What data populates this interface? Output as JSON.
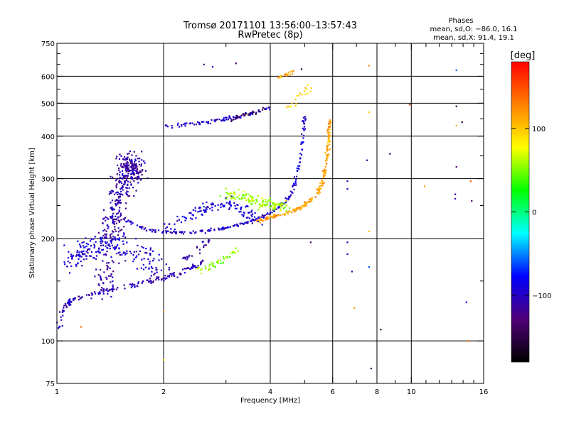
{
  "chart_data": {
    "type": "scatter",
    "title": "Tromsø 20171101 13:56:00–13:57:43",
    "subtitle": "RwPretec (8p)",
    "xlabel": "Frequency [MHz]",
    "ylabel": "Stationary phase Virtual Height [km]",
    "xscale": "log",
    "yscale": "log",
    "xlim": [
      1,
      16
    ],
    "ylim": [
      75,
      750
    ],
    "xticks": [
      1,
      2,
      4,
      6,
      8,
      10,
      16
    ],
    "xtick_labels": [
      "1",
      "2",
      "4",
      "6",
      "8",
      "10",
      "16"
    ],
    "x_minor_ticks": [
      3,
      5,
      7,
      9,
      11,
      12,
      13,
      14,
      15
    ],
    "yticks": [
      75,
      100,
      200,
      300,
      400,
      500,
      600,
      750
    ],
    "ytick_labels": [
      "75",
      "100",
      "200",
      "300",
      "400",
      "500",
      "600",
      "750"
    ],
    "y_minor_ticks": [
      150,
      250,
      350,
      450,
      550,
      650,
      700
    ],
    "grid_x": [
      2,
      4,
      6,
      8,
      10
    ],
    "grid_y": [
      100,
      200,
      300,
      400,
      500,
      600
    ],
    "stats": {
      "heading": "Phases",
      "line1": "mean, sd,O: −86.0, 16.1",
      "line2": "mean, sd,X:  91.4, 19.1"
    },
    "colorbar": {
      "label": "[deg]",
      "min": -180,
      "max": 180,
      "ticks": [
        100,
        0,
        -100
      ],
      "tick_labels": [
        "100",
        "0",
        "−100"
      ],
      "stops": [
        "#000000",
        "#500078",
        "#0000ff",
        "#00ffff",
        "#00ff00",
        "#ffff00",
        "#ff8000",
        "#ff0000"
      ]
    },
    "series": [
      {
        "curve": [
          [
            1.0,
            105
          ],
          [
            1.05,
            125
          ],
          [
            1.1,
            132
          ],
          [
            1.25,
            137
          ],
          [
            1.45,
            142
          ],
          [
            1.75,
            148
          ],
          [
            2.0,
            153
          ],
          [
            2.3,
            160
          ],
          [
            2.6,
            172
          ]
        ],
        "spread": 0.022,
        "count": 180,
        "phase": -105
      },
      {
        "curve": [
          [
            1.35,
            140
          ],
          [
            1.42,
            200
          ],
          [
            1.48,
            255
          ],
          [
            1.55,
            300
          ],
          [
            1.6,
            340
          ],
          [
            1.68,
            310
          ]
        ],
        "spread": 0.09,
        "count": 420,
        "phase": -110
      },
      {
        "curve": [
          [
            1.08,
            170
          ],
          [
            1.2,
            185
          ],
          [
            1.4,
            195
          ],
          [
            1.7,
            180
          ],
          [
            2.0,
            160
          ]
        ],
        "spread": 0.1,
        "count": 200,
        "phase": -95
      },
      {
        "curve": [
          [
            1.55,
            228
          ],
          [
            1.8,
            212
          ],
          [
            2.2,
            208
          ],
          [
            2.6,
            210
          ],
          [
            3.0,
            215
          ],
          [
            3.4,
            222
          ],
          [
            3.8,
            232
          ],
          [
            4.2,
            245
          ],
          [
            4.5,
            262
          ],
          [
            4.7,
            290
          ],
          [
            4.85,
            340
          ],
          [
            4.95,
            400
          ],
          [
            5.0,
            460
          ]
        ],
        "spread": 0.014,
        "count": 230,
        "phase": -98
      },
      {
        "curve": [
          [
            2.05,
            215
          ],
          [
            2.4,
            235
          ],
          [
            2.75,
            250
          ],
          [
            3.1,
            255
          ],
          [
            3.4,
            240
          ],
          [
            3.7,
            225
          ]
        ],
        "spread": 0.05,
        "count": 120,
        "phase": -90
      },
      {
        "curve": [
          [
            3.7,
            226
          ],
          [
            4.1,
            232
          ],
          [
            4.6,
            240
          ],
          [
            5.0,
            250
          ],
          [
            5.35,
            265
          ],
          [
            5.6,
            290
          ],
          [
            5.75,
            330
          ],
          [
            5.85,
            390
          ],
          [
            5.9,
            450
          ]
        ],
        "spread": 0.015,
        "count": 200,
        "phase": 115
      },
      {
        "curve": [
          [
            2.9,
            270
          ],
          [
            3.3,
            268
          ],
          [
            3.7,
            255
          ],
          [
            4.1,
            252
          ],
          [
            4.4,
            248
          ]
        ],
        "spread": 0.045,
        "count": 140,
        "phase": 60
      },
      {
        "curve": [
          [
            2.5,
            160
          ],
          [
            2.8,
            168
          ],
          [
            3.0,
            175
          ],
          [
            3.25,
            188
          ]
        ],
        "spread": 0.035,
        "count": 45,
        "phase": 55
      },
      {
        "curve": [
          [
            2.0,
            425
          ],
          [
            2.4,
            435
          ],
          [
            2.8,
            445
          ],
          [
            3.2,
            455
          ],
          [
            3.6,
            468
          ],
          [
            4.0,
            485
          ]
        ],
        "spread": 0.018,
        "count": 90,
        "phase": -95
      },
      {
        "curve": [
          [
            3.1,
            448
          ],
          [
            3.5,
            465
          ],
          [
            3.9,
            482
          ]
        ],
        "spread": 0.015,
        "count": 30,
        "phase": -140
      },
      {
        "curve": [
          [
            4.2,
            595
          ],
          [
            4.45,
            610
          ],
          [
            4.7,
            620
          ]
        ],
        "spread": 0.015,
        "count": 18,
        "phase": 110
      },
      {
        "curve": [
          [
            4.4,
            470
          ],
          [
            4.8,
            520
          ],
          [
            5.2,
            560
          ]
        ],
        "spread": 0.03,
        "count": 20,
        "phase": 95
      },
      {
        "curve": [
          [
            2.3,
            175
          ],
          [
            2.55,
            190
          ],
          [
            2.7,
            200
          ]
        ],
        "spread": 0.03,
        "count": 25,
        "phase": -110
      }
    ],
    "isolated_points": [
      [
        2.6,
        650,
        -120
      ],
      [
        2.75,
        640,
        -90
      ],
      [
        3.2,
        655,
        -140
      ],
      [
        4.9,
        630,
        -150
      ],
      [
        7.6,
        645,
        120
      ],
      [
        13.4,
        625,
        -60
      ],
      [
        9.9,
        495,
        160
      ],
      [
        13.4,
        490,
        -150
      ],
      [
        7.6,
        470,
        100
      ],
      [
        13.9,
        440,
        -160
      ],
      [
        13.4,
        430,
        110
      ],
      [
        7.5,
        340,
        -110
      ],
      [
        8.7,
        355,
        -120
      ],
      [
        13.4,
        325,
        -130
      ],
      [
        14.7,
        295,
        150
      ],
      [
        10.9,
        285,
        120
      ],
      [
        6.6,
        295,
        -100
      ],
      [
        6.6,
        280,
        -100
      ],
      [
        13.3,
        270,
        -110
      ],
      [
        13.3,
        262,
        -110
      ],
      [
        14.8,
        258,
        -130
      ],
      [
        7.6,
        210,
        100
      ],
      [
        6.6,
        195,
        -100
      ],
      [
        6.6,
        180,
        -100
      ],
      [
        5.2,
        195,
        -140
      ],
      [
        7.6,
        165,
        -60
      ],
      [
        6.8,
        160,
        -110
      ],
      [
        14.3,
        130,
        -80
      ],
      [
        6.9,
        125,
        120
      ],
      [
        8.2,
        108,
        -150
      ],
      [
        7.7,
        83,
        -140
      ],
      [
        14.5,
        100,
        140
      ],
      [
        2.0,
        122,
        120
      ],
      [
        2.0,
        88,
        90
      ],
      [
        1.17,
        110,
        140
      ]
    ]
  }
}
